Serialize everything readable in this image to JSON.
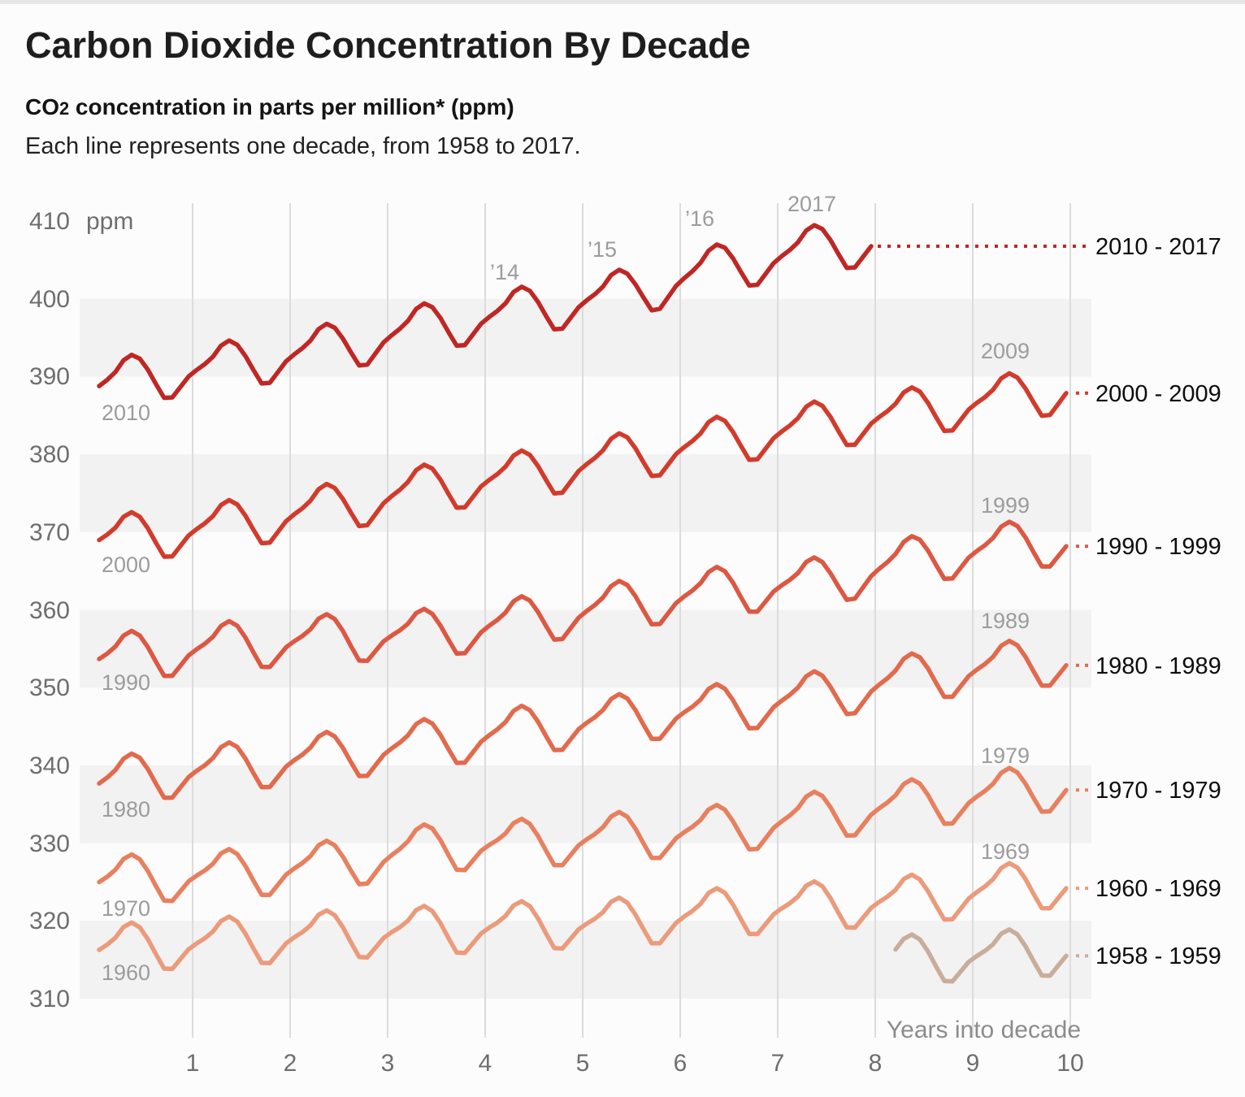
{
  "header": {
    "title": "Carbon Dioxide Concentration By Decade",
    "subtitle": {
      "prefix": "CO",
      "subscript": "2",
      "rest": " concentration in parts per million* (ppm)"
    },
    "description": "Each line represents one decade, from 1958 to 2017."
  },
  "chart_data": {
    "type": "line",
    "title": "Carbon Dioxide Concentration By Decade",
    "xlabel": "Years into decade",
    "unit_label": "ppm",
    "x_ticks": [
      1,
      2,
      3,
      4,
      5,
      6,
      7,
      8,
      9,
      10
    ],
    "y_ticks": [
      410,
      400,
      390,
      380,
      370,
      360,
      350,
      340,
      330,
      320,
      310
    ],
    "xlim": [
      0,
      10.3
    ],
    "ylim": [
      305,
      413
    ],
    "grid": "vertical gridlines with alternating horizontal bands",
    "band_pairs_ppm": [
      [
        390,
        400
      ],
      [
        370,
        380
      ],
      [
        350,
        360
      ],
      [
        330,
        340
      ],
      [
        310,
        320
      ]
    ],
    "seasonal_offsets_ppm": [
      -0.2,
      0.4,
      1.2,
      2.5,
      3.0,
      2.3,
      0.7,
      -1.3,
      -3.2,
      -3.3,
      -2.1,
      -0.9
    ],
    "series": [
      {
        "label": "2010 - 2017",
        "color": "#bf2725",
        "leader": "dotted-long",
        "decade_start": 2010,
        "first_year": 2009,
        "start_month": 12,
        "end_month": 107,
        "annual_means_ppm": [
          387.64,
          390.1,
          391.85,
          394.06,
          396.74,
          398.81,
          401.01,
          404.41,
          406.76,
          408.72
        ]
      },
      {
        "label": "2000 - 2009",
        "color": "#d23b2c",
        "leader": "dash",
        "decade_start": 2000,
        "first_year": 1999,
        "start_month": 12,
        "end_month": 131,
        "annual_means_ppm": [
          368.54,
          369.71,
          371.32,
          373.45,
          375.98,
          377.7,
          379.98,
          382.09,
          384.02,
          385.83,
          387.64,
          390.1
        ]
      },
      {
        "label": "1990 - 1999",
        "color": "#dd5843",
        "leader": "dash",
        "decade_start": 1990,
        "first_year": 1989,
        "start_month": 12,
        "end_month": 131,
        "annual_means_ppm": [
          353.2,
          354.45,
          355.7,
          356.54,
          357.21,
          358.96,
          360.97,
          362.74,
          363.88,
          366.84,
          368.54,
          369.71
        ]
      },
      {
        "label": "1980 - 1989",
        "color": "#e26a4d",
        "leader": "dash",
        "decade_start": 1980,
        "first_year": 1979,
        "start_month": 12,
        "end_month": 131,
        "annual_means_ppm": [
          336.84,
          338.76,
          340.12,
          341.48,
          343.15,
          344.87,
          346.35,
          347.61,
          349.31,
          351.69,
          353.2,
          354.45
        ]
      },
      {
        "label": "1970 - 1979",
        "color": "#e8805f",
        "leader": "dash",
        "decade_start": 1970,
        "first_year": 1969,
        "start_month": 12,
        "end_month": 131,
        "annual_means_ppm": [
          324.62,
          325.68,
          326.32,
          327.46,
          329.68,
          330.19,
          331.12,
          332.03,
          333.84,
          335.41,
          336.84,
          338.76
        ]
      },
      {
        "label": "1960 - 1969",
        "color": "#eb9b7b",
        "leader": "dash",
        "decade_start": 1960,
        "first_year": 1959,
        "start_month": 12,
        "end_month": 131,
        "annual_means_ppm": [
          315.98,
          316.91,
          317.64,
          318.45,
          318.99,
          319.62,
          320.04,
          321.37,
          322.18,
          323.05,
          324.62,
          325.68
        ]
      },
      {
        "label": "1958 - 1959",
        "color": "#c9ad9b",
        "leader": "dash",
        "decade_start": 1950,
        "first_year": 1957,
        "start_month": 14,
        "end_month": 35,
        "annual_means_ppm": [
          314.62,
          315.34,
          315.98,
          316.91
        ]
      }
    ],
    "start_labels": [
      {
        "text": "2010",
        "x": 0.32,
        "ppm": 385.3
      },
      {
        "text": "2000",
        "x": 0.32,
        "ppm": 365.8
      },
      {
        "text": "1990",
        "x": 0.32,
        "ppm": 350.7
      },
      {
        "text": "1980",
        "x": 0.32,
        "ppm": 334.3
      },
      {
        "text": "1970",
        "x": 0.32,
        "ppm": 321.6
      },
      {
        "text": "1960",
        "x": 0.32,
        "ppm": 313.3
      }
    ],
    "peak_labels": [
      {
        "text": "’14",
        "x": 4.2,
        "ppm": 403.4
      },
      {
        "text": "’15",
        "x": 5.2,
        "ppm": 406.3
      },
      {
        "text": "’16",
        "x": 6.2,
        "ppm": 410.3
      },
      {
        "text": "2017",
        "x": 7.35,
        "ppm": 412.2
      },
      {
        "text": "2009",
        "x": 9.33,
        "ppm": 393.3
      },
      {
        "text": "1999",
        "x": 9.33,
        "ppm": 373.4
      },
      {
        "text": "1989",
        "x": 9.33,
        "ppm": 358.6
      },
      {
        "text": "1979",
        "x": 9.33,
        "ppm": 341.2
      },
      {
        "text": "1969",
        "x": 9.33,
        "ppm": 328.9
      }
    ]
  }
}
